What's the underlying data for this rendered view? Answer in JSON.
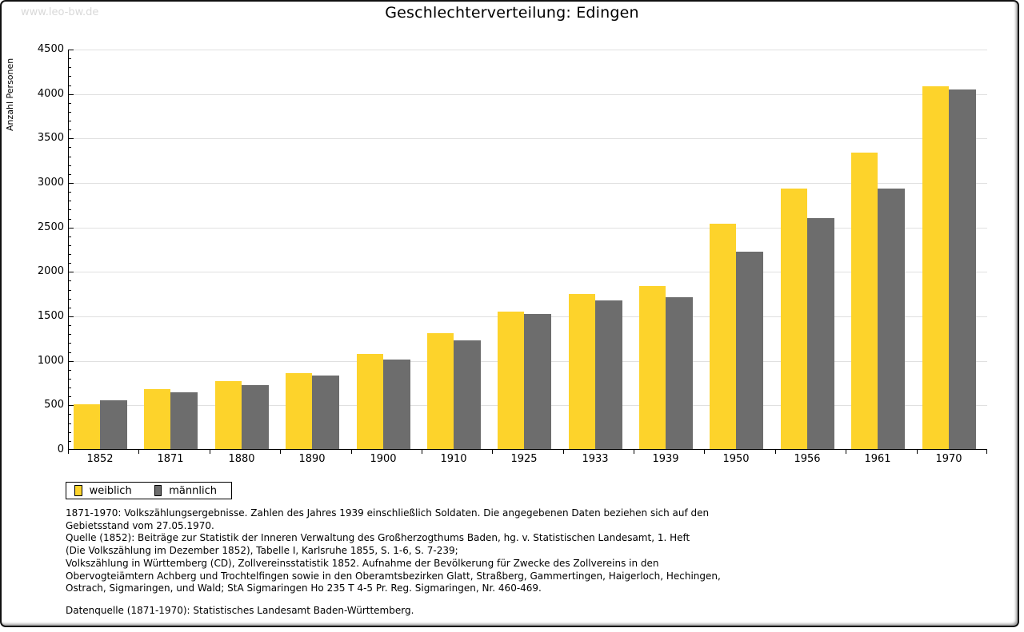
{
  "watermark": "www.leo-bw.de",
  "title": "Geschlechterverteilung: Edingen",
  "chart_data": {
    "type": "bar",
    "title": "Geschlechterverteilung: Edingen",
    "xlabel": "",
    "ylabel": "Anzahl Personen",
    "categories": [
      "1852",
      "1871",
      "1880",
      "1890",
      "1900",
      "1910",
      "1925",
      "1933",
      "1939",
      "1950",
      "1956",
      "1961",
      "1970"
    ],
    "series": [
      {
        "name": "weiblich",
        "color": "#fdd32b",
        "values": [
          500,
          675,
          765,
          855,
          1065,
          1300,
          1545,
          1745,
          1830,
          2535,
          2930,
          3330,
          4080
        ]
      },
      {
        "name": "männlich",
        "color": "#6d6d6d",
        "values": [
          545,
          635,
          715,
          830,
          1010,
          1220,
          1520,
          1670,
          1710,
          2215,
          2600,
          2930,
          4045
        ]
      }
    ],
    "ylim": [
      0,
      4500
    ],
    "ytick_step": 500,
    "yminor_step": 100,
    "grid": true,
    "gridline_color": "#e0e0e0",
    "legend_position": "below-left"
  },
  "footer": {
    "lines": [
      "1871-1970: Volkszählungsergebnisse. Zahlen des Jahres 1939 einschließlich Soldaten. Die angegebenen Daten beziehen sich auf den",
      "Gebietsstand vom 27.05.1970.",
      "Quelle (1852): Beiträge zur Statistik der Inneren Verwaltung des Großherzogthums Baden, hg. v. Statistischen Landesamt, 1. Heft",
      "(Die Volkszählung im Dezember 1852), Tabelle I, Karlsruhe 1855, S. 1-6, S. 7-239;",
      "Volkszählung in Württemberg (CD), Zollvereinsstatistik 1852. Aufnahme der Bevölkerung für Zwecke des Zollvereins in den",
      "Obervogteiämtern Achberg und Trochtelfingen sowie in den Oberamtsbezirken Glatt, Straßberg, Gammertingen, Haigerloch, Hechingen,",
      "Ostrach, Sigmaringen, und Wald; StA Sigmaringen Ho 235 T 4-5 Pr. Reg. Sigmaringen, Nr. 460-469."
    ],
    "datasource": "Datenquelle (1871-1970): Statistisches Landesamt Baden-Württemberg."
  }
}
